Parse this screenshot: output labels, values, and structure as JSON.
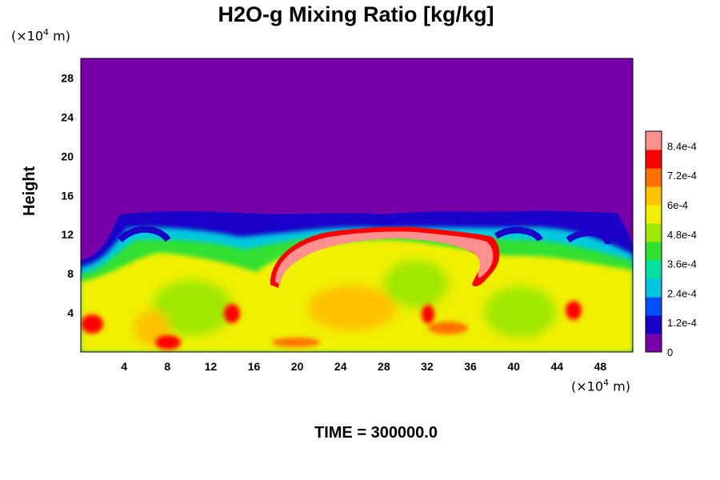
{
  "chart_data": {
    "type": "heatmap",
    "title": "H2O-g Mixing Ratio [kg/kg]",
    "ylabel": "Height",
    "y_unit": "(×10",
    "x_unit": "(×10",
    "unit_exponent": "4",
    "unit_suffix": " m)",
    "footer": "TIME = 300000.0",
    "x_ticks": [
      "4",
      "8",
      "12",
      "16",
      "20",
      "24",
      "28",
      "32",
      "36",
      "40",
      "44",
      "48"
    ],
    "y_ticks": [
      "4",
      "8",
      "12",
      "16",
      "20",
      "24",
      "28"
    ],
    "xlim": [
      0,
      51
    ],
    "ylim": [
      0,
      30
    ],
    "colorbar_range": [
      0,
      0.0009
    ],
    "colorbar_labels": [
      "0",
      "1.2e-4",
      "2.4e-4",
      "3.6e-4",
      "4.8e-4",
      "6e-4",
      "7.2e-4",
      "8.4e-4"
    ],
    "colorbar_values": [
      0,
      0.00012,
      0.00024,
      0.00036,
      0.00048,
      0.0006,
      0.00072,
      0.00084
    ],
    "colormap": [
      "#7800aa",
      "#1a00c8",
      "#0050ff",
      "#00c8e0",
      "#00e0a0",
      "#30e030",
      "#a0e800",
      "#f0f000",
      "#ffc000",
      "#ff7000",
      "#ff0000",
      "#ff9090"
    ]
  }
}
